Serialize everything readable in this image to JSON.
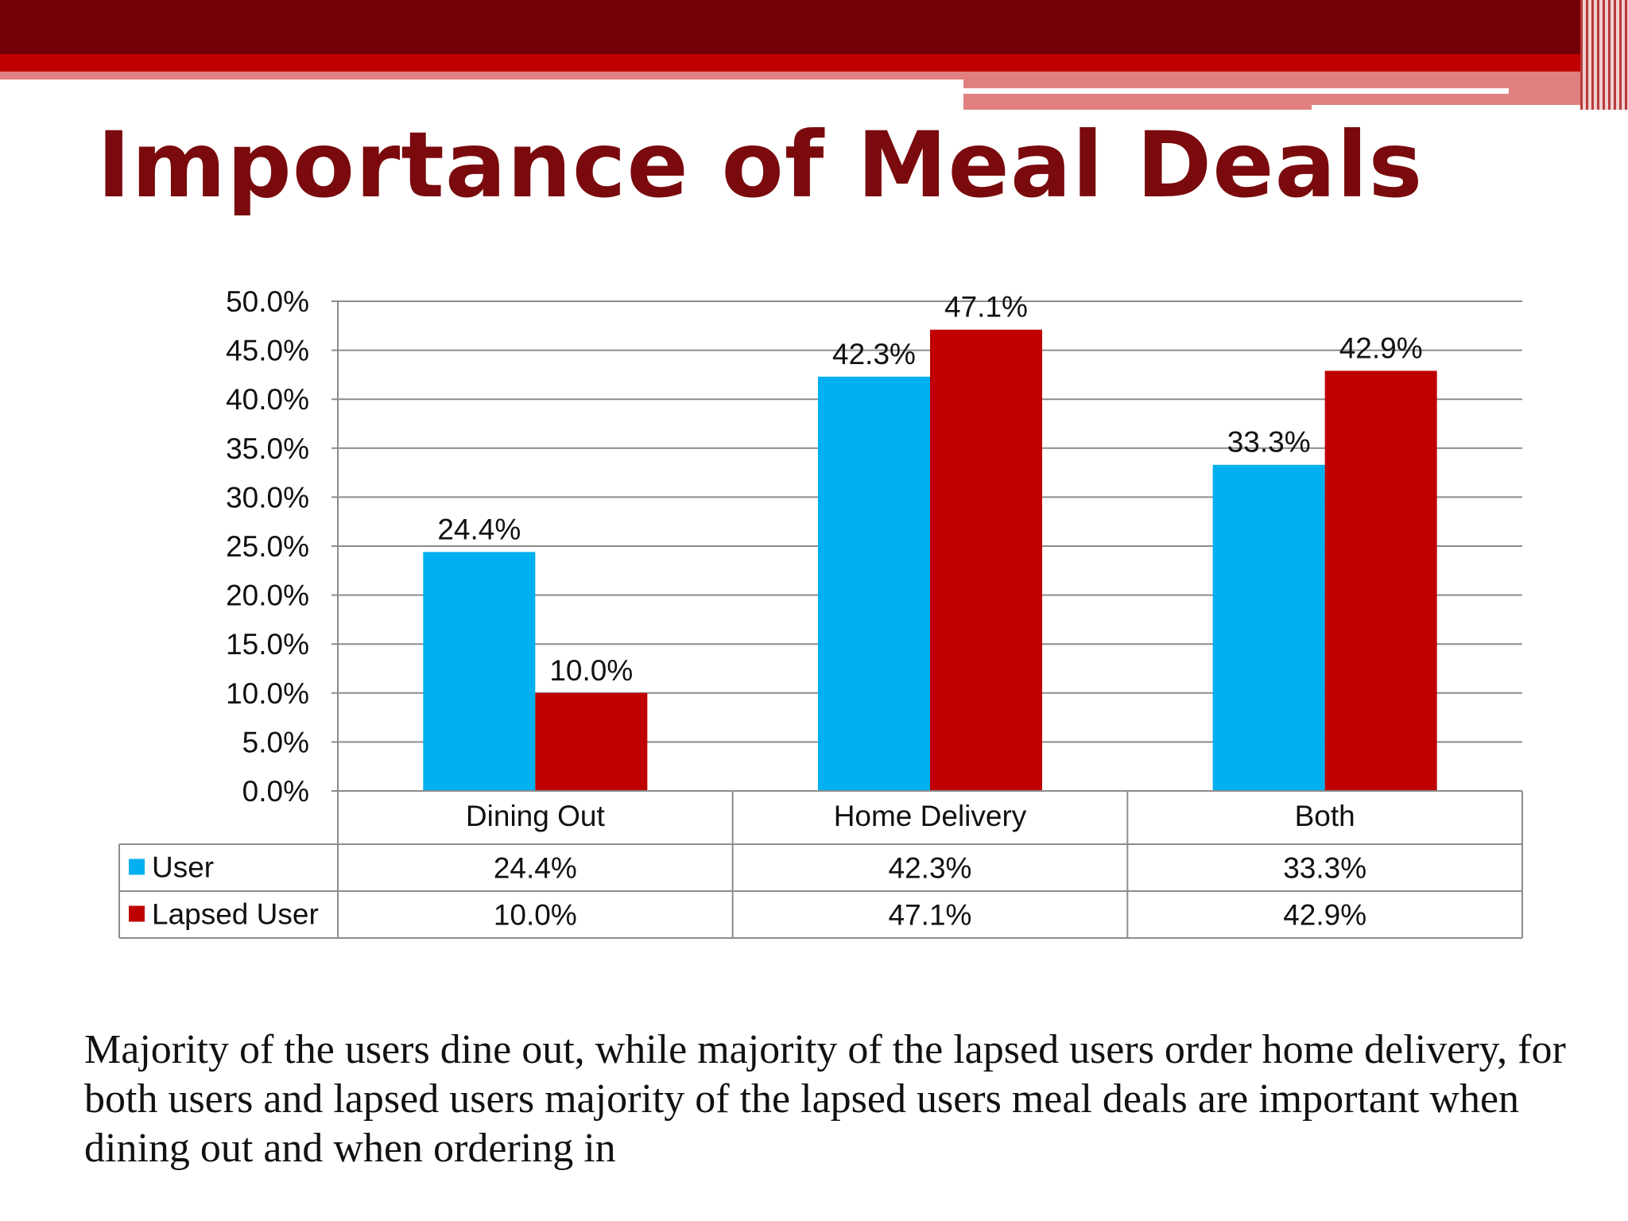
{
  "slide": {
    "title": "Importance of Meal Deals",
    "caption": "Majority of the users dine out, while majority of the lapsed users  order home delivery, for both users and lapsed users majority of the lapsed users meal deals are important when dining out and when ordering in"
  },
  "colors": {
    "title": "#7a0a0d",
    "band_dark": "#730006",
    "band_red": "#c00000",
    "band_pink": "#e08080",
    "grid": "#8c8c8c"
  },
  "chart_data": {
    "type": "bar",
    "categories": [
      "Dining Out",
      "Home Delivery",
      "Both"
    ],
    "series": [
      {
        "name": "User",
        "values": [
          24.4,
          42.3,
          33.3
        ],
        "labels": [
          "24.4%",
          "42.3%",
          "33.3%"
        ],
        "color": "#00b0f0"
      },
      {
        "name": "Lapsed User",
        "values": [
          10.0,
          47.1,
          42.9
        ],
        "labels": [
          "10.0%",
          "47.1%",
          "42.9%"
        ],
        "color": "#c00000"
      }
    ],
    "ylim": [
      0,
      50
    ],
    "ytick_labels": [
      "0.0%",
      "5.0%",
      "10.0%",
      "15.0%",
      "20.0%",
      "25.0%",
      "30.0%",
      "35.0%",
      "40.0%",
      "45.0%",
      "50.0%"
    ],
    "grid": true,
    "data_table": true,
    "legend": "data-table"
  }
}
